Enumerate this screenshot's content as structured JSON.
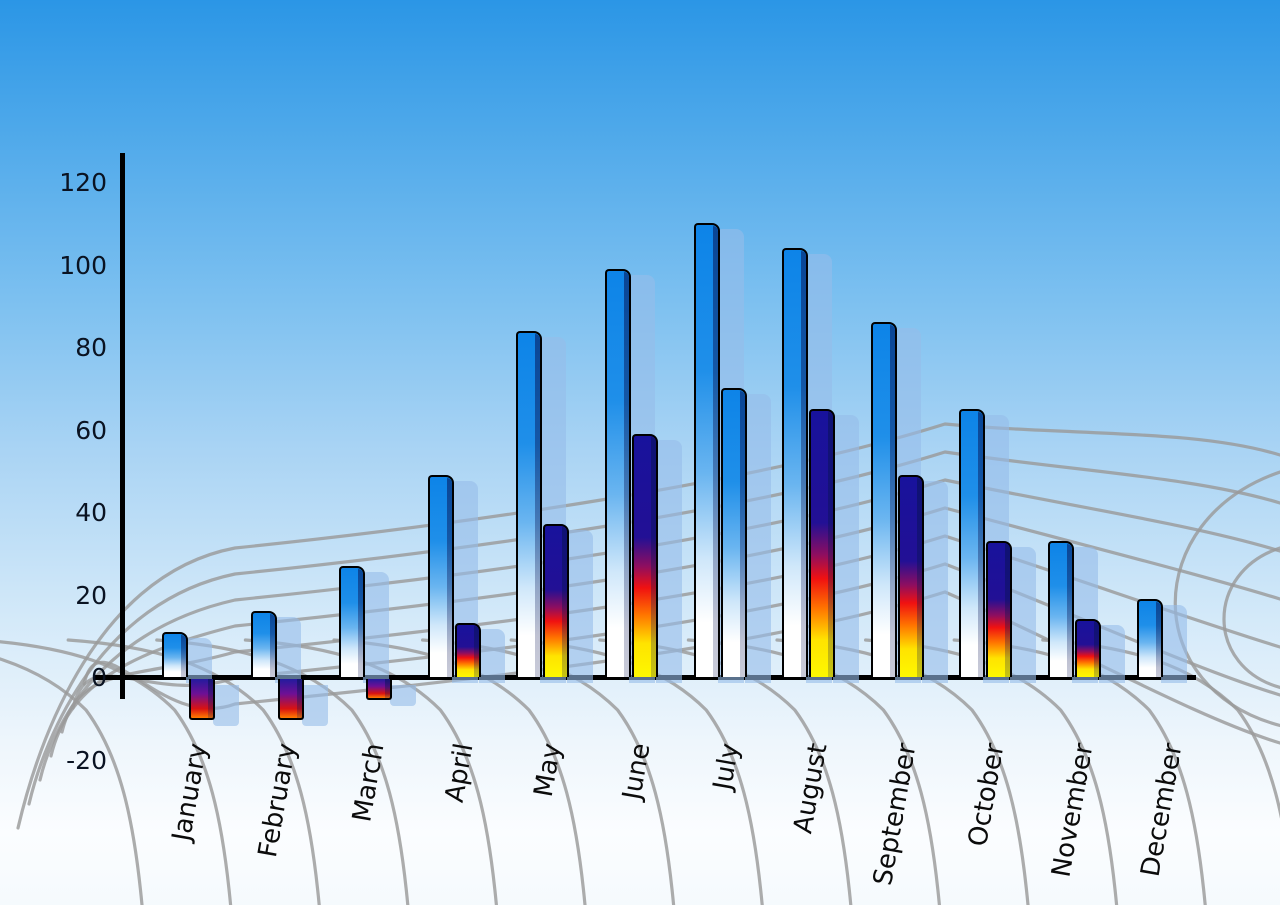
{
  "chart_data": {
    "type": "bar",
    "title": "",
    "legend": "none",
    "grid": "perspective-floor-mesh",
    "categories": [
      "January",
      "February",
      "March",
      "April",
      "May",
      "June",
      "July",
      "August",
      "September",
      "October",
      "November",
      "December"
    ],
    "series": [
      {
        "name": "series-1-blue",
        "style": "blue",
        "values": [
          11,
          16,
          27,
          49,
          84,
          99,
          110,
          104,
          86,
          65,
          33,
          19
        ]
      },
      {
        "name": "series-2-heat",
        "style": "heat",
        "values": [
          -10,
          -10,
          -5,
          13,
          37,
          59,
          70,
          65,
          49,
          33,
          14,
          null
        ],
        "style_overrides": {
          "6": "blue"
        }
      }
    ],
    "ylim": [
      -20,
      120
    ],
    "y_ticks": [
      120,
      100,
      80,
      60,
      40,
      20,
      0,
      -20
    ],
    "xlabel": "",
    "ylabel": ""
  },
  "colors": {
    "sky_top": "#2b96e6",
    "sky_bottom": "#f5fafd",
    "bar_blue_top": "#0d84e8",
    "bar_blue_bottom": "#ffffff",
    "heat_navy": "#18129c",
    "heat_red": "#f01111",
    "heat_yellow": "#fdf800",
    "bar_shadow": "#96bcea",
    "grid_line": "#9a9a9a",
    "axis": "#000000",
    "label_text": "#0b0b0b"
  }
}
